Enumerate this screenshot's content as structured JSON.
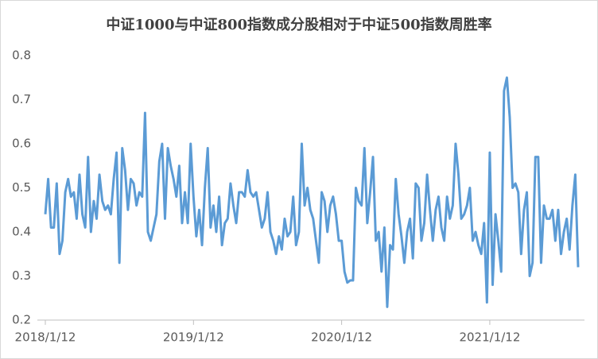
{
  "chart_data": {
    "type": "line",
    "title": "中证1000与中证800指数成分股相对于中证500指数周胜率",
    "categories": [
      "2018/1/12",
      null,
      null,
      null,
      null,
      null,
      null,
      null,
      null,
      null,
      null,
      null,
      null,
      null,
      null,
      null,
      null,
      null,
      null,
      null,
      null,
      null,
      null,
      null,
      null,
      null,
      null,
      null,
      null,
      null,
      null,
      null,
      null,
      null,
      null,
      null,
      null,
      null,
      null,
      null,
      null,
      null,
      null,
      null,
      null,
      null,
      null,
      null,
      null,
      null,
      null,
      null,
      "2019/1/12",
      null,
      null,
      null,
      null,
      null,
      null,
      null,
      null,
      null,
      null,
      null,
      null,
      null,
      null,
      null,
      null,
      null,
      null,
      null,
      null,
      null,
      null,
      null,
      null,
      null,
      null,
      null,
      null,
      null,
      null,
      null,
      null,
      null,
      null,
      null,
      null,
      null,
      null,
      null,
      null,
      null,
      null,
      null,
      null,
      null,
      null,
      null,
      null,
      null,
      null,
      null,
      "2020/1/12",
      null,
      null,
      null,
      null,
      null,
      null,
      null,
      null,
      null,
      null,
      null,
      null,
      null,
      null,
      null,
      null,
      null,
      null,
      null,
      null,
      null,
      null,
      null,
      null,
      null,
      null,
      null,
      null,
      null,
      null,
      null,
      null,
      null,
      null,
      null,
      null,
      null,
      null,
      null,
      null,
      null,
      null,
      null,
      null,
      null,
      null,
      null,
      null,
      null,
      null,
      null,
      "2021/1/12",
      null,
      null,
      null,
      null,
      null,
      null,
      null,
      null,
      null,
      null,
      null,
      null,
      null,
      null,
      null,
      null,
      null,
      null,
      null,
      null,
      null,
      null,
      null,
      null,
      null,
      null,
      null,
      null,
      null,
      null,
      null
    ],
    "series": [
      {
        "color": "#5b9bd5",
        "values": [
          0.44,
          0.52,
          0.41,
          0.41,
          0.51,
          0.35,
          0.38,
          0.49,
          0.52,
          0.48,
          0.49,
          0.43,
          0.53,
          0.44,
          0.41,
          0.57,
          0.4,
          0.47,
          0.43,
          0.53,
          0.47,
          0.45,
          0.46,
          0.44,
          0.52,
          0.58,
          0.33,
          0.59,
          0.54,
          0.45,
          0.52,
          0.51,
          0.46,
          0.49,
          0.48,
          0.67,
          0.4,
          0.38,
          0.41,
          0.44,
          0.56,
          0.6,
          0.43,
          0.59,
          0.55,
          0.52,
          0.48,
          0.55,
          0.42,
          0.49,
          0.42,
          0.6,
          0.48,
          0.39,
          0.45,
          0.37,
          0.5,
          0.59,
          0.41,
          0.46,
          0.4,
          0.48,
          0.37,
          0.42,
          0.43,
          0.51,
          0.46,
          0.42,
          0.49,
          0.49,
          0.48,
          0.54,
          0.49,
          0.48,
          0.49,
          0.45,
          0.41,
          0.43,
          0.49,
          0.4,
          0.38,
          0.35,
          0.39,
          0.36,
          0.43,
          0.39,
          0.4,
          0.48,
          0.37,
          0.4,
          0.6,
          0.46,
          0.5,
          0.45,
          0.43,
          0.38,
          0.33,
          0.49,
          0.47,
          0.4,
          0.46,
          0.48,
          0.44,
          0.38,
          0.38,
          0.31,
          0.285,
          0.29,
          0.29,
          0.5,
          0.47,
          0.46,
          0.59,
          0.42,
          0.49,
          0.57,
          0.38,
          0.4,
          0.31,
          0.41,
          0.23,
          0.37,
          0.36,
          0.52,
          0.44,
          0.39,
          0.33,
          0.4,
          0.43,
          0.34,
          0.51,
          0.5,
          0.38,
          0.42,
          0.53,
          0.45,
          0.38,
          0.45,
          0.48,
          0.41,
          0.38,
          0.48,
          0.43,
          0.46,
          0.6,
          0.53,
          0.43,
          0.44,
          0.46,
          0.5,
          0.38,
          0.4,
          0.37,
          0.35,
          0.42,
          0.24,
          0.58,
          0.28,
          0.44,
          0.38,
          0.31,
          0.72,
          0.75,
          0.66,
          0.5,
          0.51,
          0.49,
          0.35,
          0.45,
          0.49,
          0.3,
          0.33,
          0.57,
          0.57,
          0.33,
          0.46,
          0.43,
          0.43,
          0.45,
          0.38,
          0.45,
          0.35,
          0.4,
          0.43,
          0.36,
          0.46,
          0.53,
          0.32
        ]
      }
    ],
    "ylim": [
      0.2,
      0.8
    ],
    "yticks": [
      0.2,
      0.3,
      0.4,
      0.5,
      0.6,
      0.7,
      0.8
    ],
    "grid": false
  }
}
